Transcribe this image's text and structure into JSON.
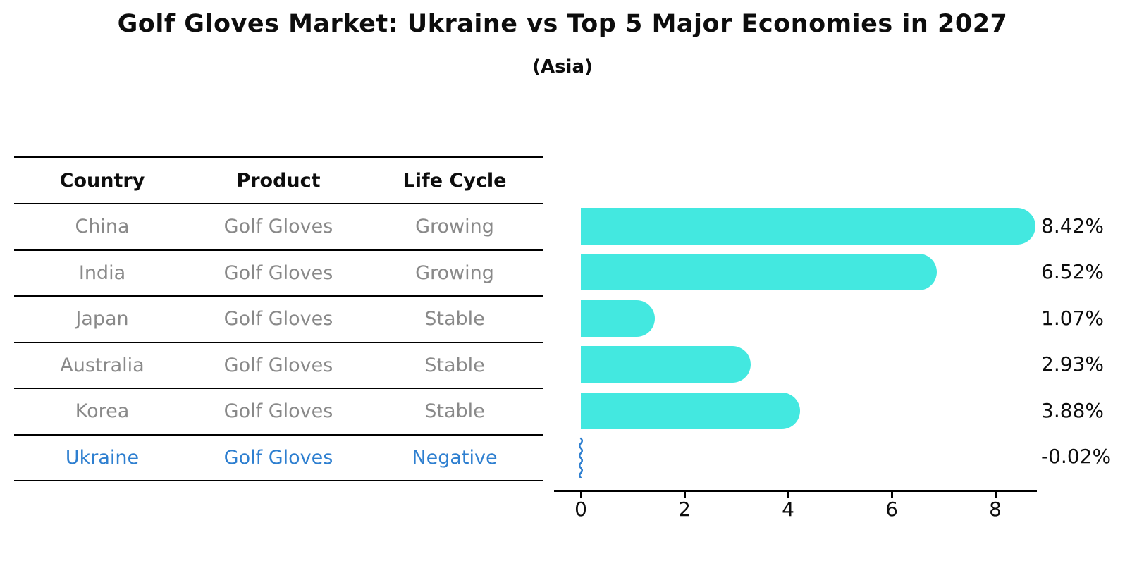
{
  "title": "Golf Gloves Market: Ukraine vs Top 5 Major Economies in 2027",
  "subtitle": "(Asia)",
  "table": {
    "headers": [
      "Country",
      "Product",
      "Life Cycle"
    ],
    "rows": [
      {
        "country": "China",
        "product": "Golf Gloves",
        "life_cycle": "Growing",
        "highlighted": false
      },
      {
        "country": "India",
        "product": "Golf Gloves",
        "life_cycle": "Growing",
        "highlighted": false
      },
      {
        "country": "Japan",
        "product": "Golf Gloves",
        "life_cycle": "Stable",
        "highlighted": false
      },
      {
        "country": "Australia",
        "product": "Golf Gloves",
        "life_cycle": "Stable",
        "highlighted": false
      },
      {
        "country": "Korea",
        "product": "Golf Gloves",
        "life_cycle": "Stable",
        "highlighted": false
      },
      {
        "country": "Ukraine",
        "product": "Golf Gloves",
        "life_cycle": "Negative",
        "highlighted": true
      }
    ]
  },
  "chart_data": {
    "type": "bar",
    "orientation": "horizontal",
    "title": "Golf Gloves Market: Ukraine vs Top 5 Major Economies in 2027",
    "subtitle": "(Asia)",
    "categories": [
      "China",
      "India",
      "Japan",
      "Australia",
      "Korea",
      "Ukraine"
    ],
    "values": [
      8.42,
      6.52,
      1.07,
      2.93,
      3.88,
      -0.02
    ],
    "value_labels": [
      "8.42%",
      "6.52%",
      "1.07%",
      "2.93%",
      "3.88%",
      "-0.02%"
    ],
    "xticks": [
      0,
      2,
      4,
      6,
      8
    ],
    "xlim": [
      -0.5,
      8.8
    ],
    "grid": false,
    "legend": false,
    "bar_color": "#43E8E0",
    "highlight_color": "#2E7FD0",
    "axis_color": "#000000",
    "label_color": "#0d0d0d"
  }
}
